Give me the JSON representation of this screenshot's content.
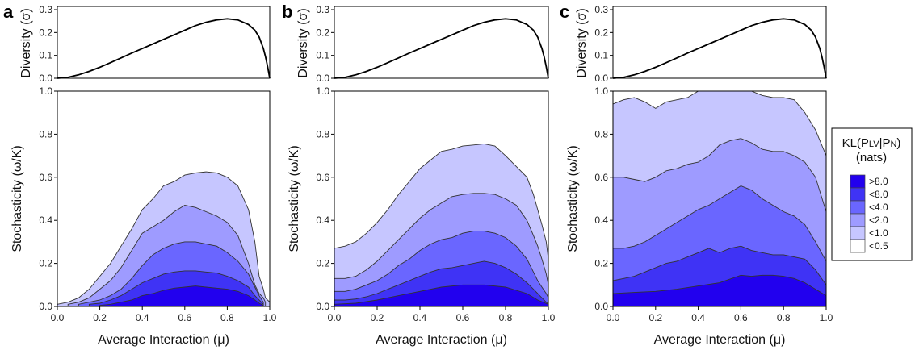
{
  "chart_data": [
    {
      "panel": "a",
      "type": "area",
      "diversity_ylabel": "Diversity (σ)",
      "diversity_yticks": [
        "0.0",
        "0.1",
        "0.2",
        "0.3"
      ],
      "diversity_ylim": [
        0,
        0.3
      ],
      "diversity_curve_x": [
        0,
        0.05,
        0.1,
        0.15,
        0.2,
        0.25,
        0.3,
        0.35,
        0.4,
        0.45,
        0.5,
        0.55,
        0.6,
        0.65,
        0.7,
        0.75,
        0.8,
        0.85,
        0.9,
        0.93,
        0.95,
        0.97,
        0.98,
        0.99,
        1.0
      ],
      "diversity_curve_y": [
        0,
        0.004,
        0.015,
        0.03,
        0.048,
        0.068,
        0.089,
        0.11,
        0.13,
        0.15,
        0.17,
        0.19,
        0.21,
        0.23,
        0.245,
        0.255,
        0.26,
        0.255,
        0.235,
        0.21,
        0.18,
        0.13,
        0.095,
        0.05,
        0
      ],
      "xlabel": "Average Interaction (μ)",
      "ylabel": "Stochasticity (ω/K)",
      "xticks": [
        "0.0",
        "0.2",
        "0.4",
        "0.6",
        "0.8",
        "1.0"
      ],
      "yticks": [
        "0.0",
        "0.2",
        "0.4",
        "0.6",
        "0.8",
        "1.0"
      ],
      "xlim": [
        0,
        1
      ],
      "ylim": [
        0,
        1
      ],
      "contours": [
        {
          "level": "<1.0",
          "x": [
            0,
            0.05,
            0.1,
            0.15,
            0.2,
            0.25,
            0.3,
            0.35,
            0.4,
            0.45,
            0.5,
            0.55,
            0.6,
            0.65,
            0.7,
            0.75,
            0.8,
            0.85,
            0.9,
            0.93,
            0.95,
            0.97,
            0.98,
            1.0
          ],
          "y": [
            0.01,
            0.02,
            0.04,
            0.08,
            0.14,
            0.2,
            0.28,
            0.36,
            0.45,
            0.5,
            0.56,
            0.58,
            0.61,
            0.62,
            0.625,
            0.62,
            0.6,
            0.56,
            0.45,
            0.3,
            0.14,
            0.08,
            0.04,
            0.02
          ]
        },
        {
          "level": "<2.0",
          "x": [
            0.05,
            0.1,
            0.15,
            0.2,
            0.25,
            0.3,
            0.35,
            0.4,
            0.45,
            0.5,
            0.55,
            0.6,
            0.65,
            0.7,
            0.75,
            0.8,
            0.85,
            0.9,
            0.93,
            0.95,
            0.97,
            0.98
          ],
          "y": [
            0.01,
            0.02,
            0.04,
            0.08,
            0.12,
            0.18,
            0.26,
            0.34,
            0.37,
            0.4,
            0.44,
            0.47,
            0.46,
            0.44,
            0.42,
            0.39,
            0.33,
            0.2,
            0.1,
            0.06,
            0.04,
            0.02
          ]
        },
        {
          "level": "<4.0",
          "x": [
            0.1,
            0.15,
            0.2,
            0.25,
            0.3,
            0.35,
            0.4,
            0.45,
            0.5,
            0.55,
            0.6,
            0.65,
            0.7,
            0.75,
            0.8,
            0.85,
            0.9,
            0.93,
            0.95,
            0.97
          ],
          "y": [
            0.01,
            0.02,
            0.03,
            0.05,
            0.08,
            0.13,
            0.19,
            0.24,
            0.27,
            0.29,
            0.3,
            0.3,
            0.29,
            0.28,
            0.25,
            0.21,
            0.15,
            0.09,
            0.05,
            0.02
          ]
        },
        {
          "level": "<8.0",
          "x": [
            0.15,
            0.2,
            0.25,
            0.3,
            0.35,
            0.4,
            0.45,
            0.5,
            0.55,
            0.6,
            0.65,
            0.7,
            0.75,
            0.8,
            0.85,
            0.9,
            0.93,
            0.95,
            0.97
          ],
          "y": [
            0.01,
            0.015,
            0.03,
            0.05,
            0.08,
            0.11,
            0.13,
            0.15,
            0.16,
            0.165,
            0.165,
            0.16,
            0.155,
            0.14,
            0.12,
            0.09,
            0.05,
            0.03,
            0.01
          ]
        },
        {
          "level": ">8.0",
          "x": [
            0.2,
            0.25,
            0.3,
            0.35,
            0.4,
            0.45,
            0.5,
            0.55,
            0.6,
            0.65,
            0.7,
            0.75,
            0.8,
            0.85,
            0.9,
            0.93,
            0.95,
            0.97
          ],
          "y": [
            0.005,
            0.01,
            0.02,
            0.03,
            0.05,
            0.06,
            0.075,
            0.085,
            0.09,
            0.095,
            0.09,
            0.085,
            0.08,
            0.07,
            0.05,
            0.03,
            0.015,
            0.005
          ]
        }
      ]
    },
    {
      "panel": "b",
      "type": "area",
      "diversity_ylabel": "Diversity (σ)",
      "diversity_yticks": [
        "0.0",
        "0.1",
        "0.2",
        "0.3"
      ],
      "diversity_ylim": [
        0,
        0.3
      ],
      "diversity_curve_x": [
        0,
        0.05,
        0.1,
        0.15,
        0.2,
        0.25,
        0.3,
        0.35,
        0.4,
        0.45,
        0.5,
        0.55,
        0.6,
        0.65,
        0.7,
        0.75,
        0.8,
        0.85,
        0.9,
        0.93,
        0.95,
        0.97,
        0.98,
        0.99,
        1.0
      ],
      "diversity_curve_y": [
        0,
        0.004,
        0.015,
        0.03,
        0.048,
        0.068,
        0.089,
        0.11,
        0.13,
        0.15,
        0.17,
        0.19,
        0.21,
        0.23,
        0.245,
        0.255,
        0.26,
        0.255,
        0.235,
        0.21,
        0.18,
        0.13,
        0.095,
        0.05,
        0
      ],
      "xlabel": "Average Interaction (μ)",
      "ylabel": "Stochasticity (ω/K)",
      "xticks": [
        "0.0",
        "0.2",
        "0.4",
        "0.6",
        "0.8",
        "1.0"
      ],
      "yticks": [
        "0.0",
        "0.2",
        "0.4",
        "0.6",
        "0.8",
        "1.0"
      ],
      "xlim": [
        0,
        1
      ],
      "ylim": [
        0,
        1
      ],
      "contours": [
        {
          "level": "<1.0",
          "x": [
            0,
            0.05,
            0.1,
            0.15,
            0.2,
            0.25,
            0.3,
            0.35,
            0.4,
            0.45,
            0.5,
            0.55,
            0.6,
            0.65,
            0.7,
            0.75,
            0.8,
            0.85,
            0.9,
            0.93,
            0.95,
            0.97,
            0.99,
            1.0
          ],
          "y": [
            0.27,
            0.28,
            0.3,
            0.34,
            0.39,
            0.45,
            0.52,
            0.58,
            0.64,
            0.68,
            0.72,
            0.73,
            0.745,
            0.75,
            0.755,
            0.745,
            0.7,
            0.65,
            0.6,
            0.52,
            0.45,
            0.38,
            0.3,
            0.22
          ]
        },
        {
          "level": "<2.0",
          "x": [
            0,
            0.05,
            0.1,
            0.15,
            0.2,
            0.25,
            0.3,
            0.35,
            0.4,
            0.45,
            0.5,
            0.55,
            0.6,
            0.65,
            0.7,
            0.75,
            0.8,
            0.85,
            0.9,
            0.93,
            0.95,
            0.97,
            0.99,
            1.0
          ],
          "y": [
            0.13,
            0.13,
            0.14,
            0.17,
            0.21,
            0.26,
            0.31,
            0.36,
            0.41,
            0.45,
            0.48,
            0.51,
            0.52,
            0.525,
            0.525,
            0.52,
            0.5,
            0.47,
            0.4,
            0.33,
            0.28,
            0.22,
            0.15,
            0.1
          ]
        },
        {
          "level": "<4.0",
          "x": [
            0,
            0.05,
            0.1,
            0.15,
            0.2,
            0.25,
            0.3,
            0.35,
            0.4,
            0.45,
            0.5,
            0.55,
            0.6,
            0.65,
            0.7,
            0.75,
            0.8,
            0.85,
            0.9,
            0.93,
            0.95,
            0.97,
            0.99,
            1.0
          ],
          "y": [
            0.07,
            0.07,
            0.08,
            0.1,
            0.12,
            0.15,
            0.19,
            0.22,
            0.26,
            0.29,
            0.31,
            0.32,
            0.34,
            0.35,
            0.35,
            0.34,
            0.32,
            0.28,
            0.22,
            0.16,
            0.12,
            0.09,
            0.06,
            0.04
          ]
        },
        {
          "level": "<8.0",
          "x": [
            0,
            0.05,
            0.1,
            0.15,
            0.2,
            0.25,
            0.3,
            0.35,
            0.4,
            0.45,
            0.5,
            0.55,
            0.6,
            0.65,
            0.7,
            0.75,
            0.8,
            0.85,
            0.9,
            0.93,
            0.95,
            0.97,
            0.99,
            1.0
          ],
          "y": [
            0.03,
            0.03,
            0.035,
            0.045,
            0.06,
            0.08,
            0.1,
            0.12,
            0.14,
            0.16,
            0.175,
            0.18,
            0.19,
            0.2,
            0.21,
            0.2,
            0.18,
            0.15,
            0.11,
            0.08,
            0.06,
            0.04,
            0.02,
            0.01
          ]
        },
        {
          "level": ">8.0",
          "x": [
            0,
            0.1,
            0.2,
            0.3,
            0.4,
            0.5,
            0.6,
            0.7,
            0.8,
            0.9,
            0.95,
            1.0
          ],
          "y": [
            0.01,
            0.015,
            0.03,
            0.05,
            0.07,
            0.09,
            0.1,
            0.1,
            0.09,
            0.06,
            0.03,
            0.01
          ]
        }
      ]
    },
    {
      "panel": "c",
      "type": "area",
      "diversity_ylabel": "Diversity (σ)",
      "diversity_yticks": [
        "0.0",
        "0.1",
        "0.2",
        "0.3"
      ],
      "diversity_ylim": [
        0,
        0.3
      ],
      "diversity_curve_x": [
        0,
        0.05,
        0.1,
        0.15,
        0.2,
        0.25,
        0.3,
        0.35,
        0.4,
        0.45,
        0.5,
        0.55,
        0.6,
        0.65,
        0.7,
        0.75,
        0.8,
        0.85,
        0.9,
        0.93,
        0.95,
        0.97,
        0.98,
        0.99,
        1.0
      ],
      "diversity_curve_y": [
        0,
        0.004,
        0.015,
        0.03,
        0.048,
        0.068,
        0.089,
        0.11,
        0.13,
        0.15,
        0.17,
        0.19,
        0.21,
        0.23,
        0.245,
        0.255,
        0.26,
        0.255,
        0.235,
        0.21,
        0.18,
        0.13,
        0.095,
        0.05,
        0
      ],
      "xlabel": "Average Interaction (μ)",
      "ylabel": "Stochasticity (ω/K)",
      "xticks": [
        "0.0",
        "0.2",
        "0.4",
        "0.6",
        "0.8",
        "1.0"
      ],
      "yticks": [
        "0.0",
        "0.2",
        "0.4",
        "0.6",
        "0.8",
        "1.0"
      ],
      "xlim": [
        0,
        1
      ],
      "ylim": [
        0,
        1
      ],
      "contours": [
        {
          "level": "<1.0",
          "x": [
            0,
            0.05,
            0.1,
            0.15,
            0.2,
            0.25,
            0.3,
            0.35,
            0.4,
            0.45,
            0.5,
            0.55,
            0.6,
            0.65,
            0.7,
            0.75,
            0.8,
            0.85,
            0.9,
            0.95,
            1.0
          ],
          "y": [
            0.94,
            0.96,
            0.97,
            0.95,
            0.92,
            0.95,
            0.96,
            0.97,
            1.0,
            1.0,
            1.0,
            1.0,
            1.0,
            1.0,
            0.98,
            0.97,
            0.97,
            0.96,
            0.9,
            0.82,
            0.7
          ]
        },
        {
          "level": "<2.0",
          "x": [
            0,
            0.05,
            0.1,
            0.15,
            0.2,
            0.25,
            0.3,
            0.35,
            0.4,
            0.45,
            0.5,
            0.55,
            0.6,
            0.65,
            0.7,
            0.75,
            0.8,
            0.85,
            0.9,
            0.95,
            1.0
          ],
          "y": [
            0.6,
            0.6,
            0.59,
            0.58,
            0.6,
            0.63,
            0.64,
            0.66,
            0.67,
            0.7,
            0.75,
            0.77,
            0.78,
            0.76,
            0.73,
            0.72,
            0.72,
            0.7,
            0.67,
            0.6,
            0.44
          ]
        },
        {
          "level": "<4.0",
          "x": [
            0,
            0.05,
            0.1,
            0.15,
            0.2,
            0.25,
            0.3,
            0.35,
            0.4,
            0.45,
            0.5,
            0.55,
            0.6,
            0.65,
            0.7,
            0.75,
            0.8,
            0.85,
            0.9,
            0.95,
            1.0
          ],
          "y": [
            0.27,
            0.27,
            0.28,
            0.3,
            0.33,
            0.36,
            0.39,
            0.42,
            0.45,
            0.47,
            0.5,
            0.53,
            0.56,
            0.54,
            0.5,
            0.47,
            0.44,
            0.42,
            0.38,
            0.3,
            0.21
          ]
        },
        {
          "level": "<8.0",
          "x": [
            0,
            0.05,
            0.1,
            0.15,
            0.2,
            0.25,
            0.3,
            0.35,
            0.4,
            0.45,
            0.5,
            0.55,
            0.6,
            0.65,
            0.7,
            0.75,
            0.8,
            0.85,
            0.9,
            0.95,
            1.0
          ],
          "y": [
            0.12,
            0.13,
            0.14,
            0.16,
            0.18,
            0.2,
            0.21,
            0.23,
            0.25,
            0.27,
            0.25,
            0.27,
            0.28,
            0.26,
            0.25,
            0.24,
            0.24,
            0.23,
            0.22,
            0.17,
            0.1
          ]
        },
        {
          "level": ">8.0",
          "x": [
            0,
            0.1,
            0.2,
            0.3,
            0.4,
            0.5,
            0.6,
            0.65,
            0.7,
            0.75,
            0.8,
            0.85,
            0.9,
            0.95,
            1.0
          ],
          "y": [
            0.06,
            0.065,
            0.07,
            0.08,
            0.095,
            0.11,
            0.145,
            0.14,
            0.145,
            0.145,
            0.14,
            0.13,
            0.11,
            0.08,
            0.05
          ]
        }
      ]
    }
  ],
  "legend": {
    "title_line1": "KL(P",
    "title_sub1": "LV",
    "title_mid": "|P",
    "title_sub2": "N",
    "title_end": ")",
    "title_line2": "(nats)",
    "entries": [
      {
        "label": ">8.0",
        "color": "#2200ee"
      },
      {
        "label": "<8.0",
        "color": "#3f33f5"
      },
      {
        "label": "<4.0",
        "color": "#6a66ff"
      },
      {
        "label": "<2.0",
        "color": "#9e9bff"
      },
      {
        "label": "<1.0",
        "color": "#c6c6ff"
      },
      {
        "label": "<0.5",
        "color": "#ffffff"
      }
    ]
  },
  "panel_labels": [
    "a",
    "b",
    "c"
  ]
}
